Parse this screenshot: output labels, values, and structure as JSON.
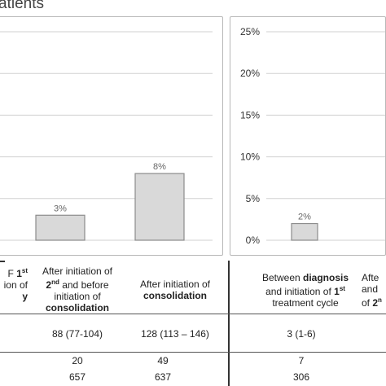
{
  "title_fragment": "atients",
  "chart_data": [
    {
      "type": "bar",
      "categories": [
        "",
        "",
        ""
      ],
      "values": [
        null,
        3,
        8
      ],
      "data_labels": [
        "",
        "3%",
        "8%"
      ],
      "ylim": [
        0,
        25
      ],
      "yticks": [],
      "grid": true,
      "colors": {
        "bar_fill": "#d9d9d9",
        "bar_stroke": "#8c8c8c",
        "grid": "#d0d0d0"
      }
    },
    {
      "type": "bar",
      "categories": [
        ""
      ],
      "values": [
        2
      ],
      "data_labels": [
        "2%"
      ],
      "ylim": [
        0,
        25
      ],
      "yticks": [
        "0%",
        "5%",
        "10%",
        "15%",
        "20%",
        "25%"
      ],
      "grid": true,
      "colors": {
        "bar_fill": "#d9d9d9",
        "bar_stroke": "#8c8c8c",
        "grid": "#d0d0d0"
      }
    }
  ],
  "table": {
    "headers": [
      {
        "lines": [
          "F 1st",
          "ion of",
          "y"
        ]
      },
      {
        "lines": [
          "After initiation of",
          "2nd and before",
          "initiation of",
          "consolidation"
        ]
      },
      {
        "lines": [
          "After initiation of",
          "consolidation"
        ]
      },
      {
        "lines": [
          "Between diagnosis",
          "and initiation of 1st",
          "treatment cycle"
        ]
      },
      {
        "lines": [
          "Afte",
          "and",
          "of 2n"
        ]
      }
    ],
    "row_median": [
      "88 (77-104)",
      "128 (113 – 146)",
      "3 (1-6)"
    ],
    "row_count": [
      "20",
      "49",
      "7"
    ],
    "row_total": [
      "657",
      "637",
      "306"
    ]
  }
}
